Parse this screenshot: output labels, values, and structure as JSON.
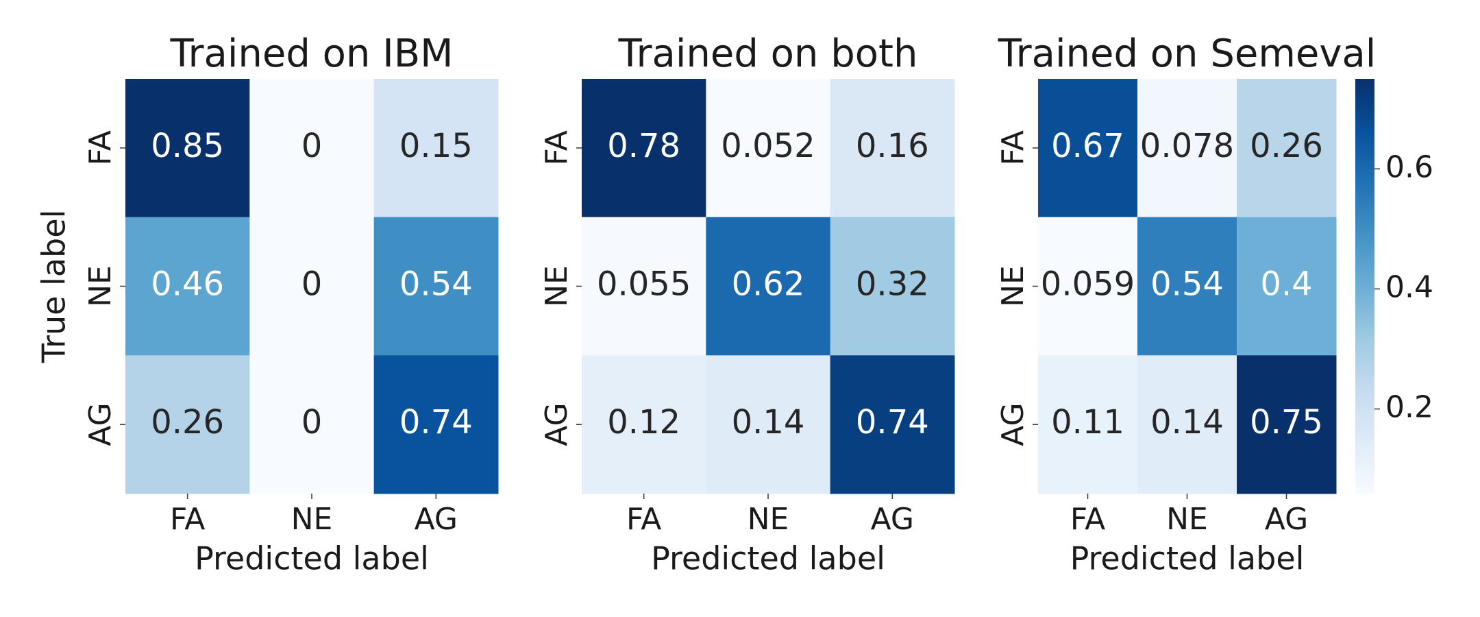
{
  "chart_data": [
    {
      "type": "heatmap",
      "title": "Trained on IBM",
      "x_categories": [
        "FA",
        "NE",
        "AG"
      ],
      "y_categories": [
        "FA",
        "NE",
        "AG"
      ],
      "values": [
        [
          0.85,
          0,
          0.15
        ],
        [
          0.46,
          0,
          0.54
        ],
        [
          0.26,
          0,
          0.74
        ]
      ],
      "xlabel": "Predicted label",
      "ylabel": "True label",
      "vlim": [
        0,
        0.85
      ],
      "cmap": "Blues"
    },
    {
      "type": "heatmap",
      "title": "Trained on both",
      "x_categories": [
        "FA",
        "NE",
        "AG"
      ],
      "y_categories": [
        "FA",
        "NE",
        "AG"
      ],
      "values": [
        [
          0.78,
          0.052,
          0.16
        ],
        [
          0.055,
          0.62,
          0.32
        ],
        [
          0.12,
          0.14,
          0.74
        ]
      ],
      "xlabel": "Predicted label",
      "vlim": [
        0.052,
        0.78
      ],
      "cmap": "Blues"
    },
    {
      "type": "heatmap",
      "title": "Trained on Semeval",
      "x_categories": [
        "FA",
        "NE",
        "AG"
      ],
      "y_categories": [
        "FA",
        "NE",
        "AG"
      ],
      "values": [
        [
          0.67,
          0.078,
          0.26
        ],
        [
          0.059,
          0.54,
          0.4
        ],
        [
          0.11,
          0.14,
          0.75
        ]
      ],
      "xlabel": "Predicted label",
      "vlim": [
        0.059,
        0.75
      ],
      "cmap": "Blues",
      "colorbar": true,
      "cticks": [
        0.2,
        0.4,
        0.6
      ]
    }
  ]
}
